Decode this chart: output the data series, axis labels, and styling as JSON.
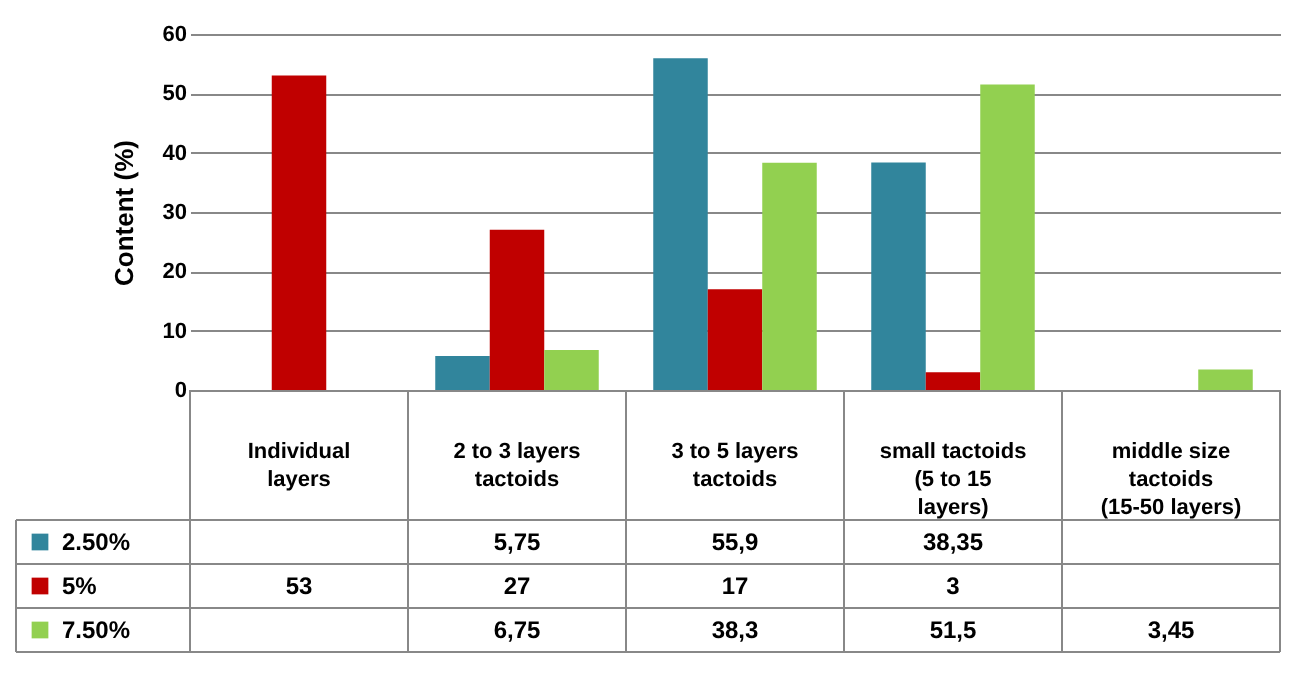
{
  "chart_data": {
    "type": "bar",
    "ylabel": "Content (%)",
    "categories": [
      "Individual layers",
      "2 to 3 layers tactoids",
      "3 to 5 layers tactoids",
      "small tactoids (5 to 15 layers)",
      "middle size tactoids (15-50 layers)"
    ],
    "series": [
      {
        "name": "2.50%",
        "color": "#31859c",
        "values": [
          null,
          5.75,
          55.9,
          38.35,
          null
        ],
        "value_labels": [
          null,
          "5,75",
          "55,9",
          "38,35",
          null
        ]
      },
      {
        "name": "5%",
        "color": "#c00000",
        "values": [
          53,
          27,
          17,
          3,
          null
        ],
        "value_labels": [
          "53",
          "27",
          "17",
          "3",
          null
        ]
      },
      {
        "name": "7.50%",
        "color": "#92d050",
        "values": [
          null,
          6.75,
          38.3,
          51.5,
          3.45
        ],
        "value_labels": [
          null,
          "6,75",
          "38,3",
          "51,5",
          "3,45"
        ]
      }
    ],
    "ylim": [
      0,
      60
    ],
    "yticks": [
      0,
      10,
      20,
      30,
      40,
      50,
      60
    ],
    "grid": "y",
    "legend": "bottom"
  }
}
